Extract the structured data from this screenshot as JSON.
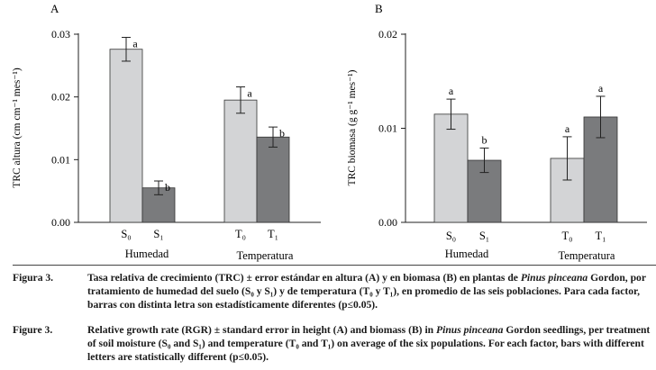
{
  "colors": {
    "light": "#d3d4d6",
    "dark": "#7a7b7d",
    "axis": "#222222"
  },
  "chart_data": [
    {
      "type": "bar",
      "panel_label": "A",
      "ylabel": "TRC altura (cm cm⁻¹ mes⁻¹)",
      "ylim": [
        0,
        0.03
      ],
      "yticks": [
        "0.00",
        "0.01",
        "0.02",
        "0.03"
      ],
      "ytick_values": [
        0,
        0.01,
        0.02,
        0.03
      ],
      "groups": [
        {
          "name": "Humedad",
          "bars": [
            {
              "category": "S₀",
              "value": 0.0276,
              "error": 0.0019,
              "letter": "a",
              "shade": "light"
            },
            {
              "category": "S₁",
              "value": 0.0055,
              "error": 0.0011,
              "letter": "b",
              "shade": "dark"
            }
          ]
        },
        {
          "name": "Temperatura",
          "bars": [
            {
              "category": "T₀",
              "value": 0.0195,
              "error": 0.0021,
              "letter": "a",
              "shade": "light"
            },
            {
              "category": "T₁",
              "value": 0.0136,
              "error": 0.0016,
              "letter": "b",
              "shade": "dark"
            }
          ]
        }
      ]
    },
    {
      "type": "bar",
      "panel_label": "B",
      "ylabel": "TRC biomasa (g g⁻¹ mes⁻¹)",
      "ylim": [
        0,
        0.02
      ],
      "yticks": [
        "0.00",
        "0.01",
        "0.02"
      ],
      "ytick_values": [
        0,
        0.01,
        0.02
      ],
      "groups": [
        {
          "name": "Humedad",
          "bars": [
            {
              "category": "S₀",
              "value": 0.0115,
              "error": 0.0016,
              "letter": "a",
              "shade": "light"
            },
            {
              "category": "S₁",
              "value": 0.0066,
              "error": 0.0013,
              "letter": "b",
              "shade": "dark"
            }
          ]
        },
        {
          "name": "Temperatura",
          "bars": [
            {
              "category": "T₀",
              "value": 0.0068,
              "error": 0.0023,
              "letter": "a",
              "shade": "light"
            },
            {
              "category": "T₁",
              "value": 0.0112,
              "error": 0.0022,
              "letter": "a",
              "shade": "dark"
            }
          ]
        }
      ]
    }
  ],
  "caption_es": {
    "label": "Figura 3.",
    "text_a": "Tasa relativa de crecimiento (TRC) ± error estándar en altura (A) y en biomasa (B) en plantas de ",
    "species": "Pinus pinceana",
    "text_b": " Gordon, por tratamiento de humedad del suelo (S₀ y S₁) y de temperatura (T₀ y T₁), en promedio de las seis poblaciones. Para cada factor, barras con distinta letra son estadísticamente diferentes (p≤0.05)."
  },
  "caption_en": {
    "label": "Figure 3.",
    "text_a": "Relative growth rate (RGR) ± standard error in height (A) and biomass (B) in ",
    "species": "Pinus pinceana",
    "text_b": " Gordon seedlings, per treatment of soil moisture (S₀ and S₁) and temperature (T₀ and T₁) on average of the six populations. For each factor, bars with different letters are statistically different (p≤0.05)."
  }
}
